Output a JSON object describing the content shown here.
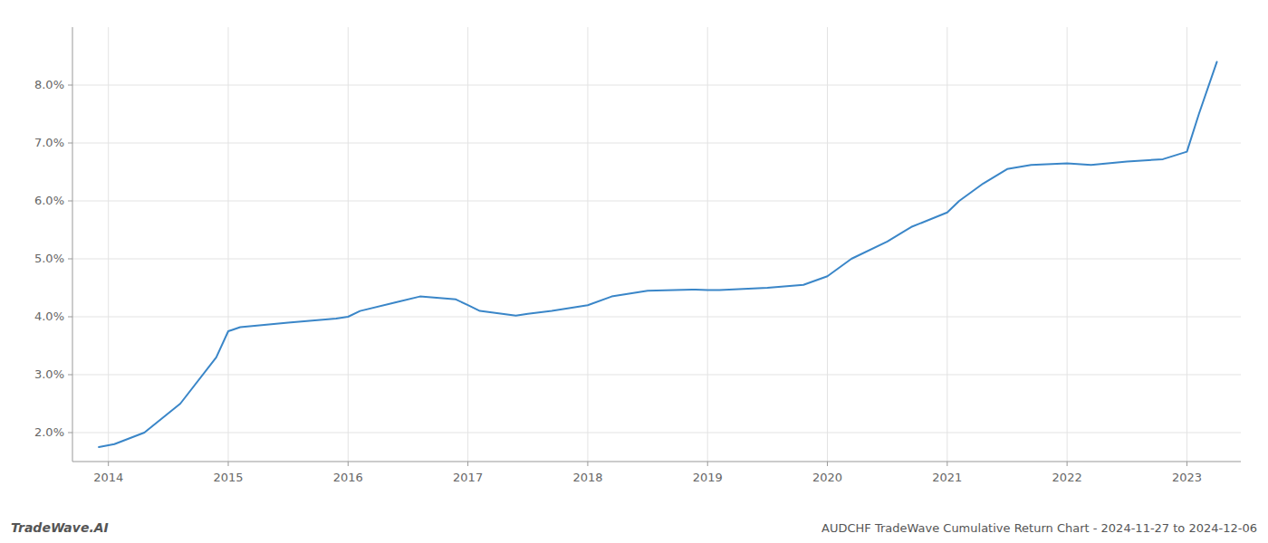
{
  "chart_data": {
    "type": "line",
    "title": "AUDCHF TradeWave Cumulative Return Chart - 2024-11-27 to 2024-12-06",
    "annotations": [
      "TradeWave.AI"
    ],
    "x": [
      2013.92,
      2014.05,
      2014.3,
      2014.6,
      2014.9,
      2015.0,
      2015.1,
      2015.5,
      2015.9,
      2016.0,
      2016.1,
      2016.4,
      2016.6,
      2016.9,
      2017.0,
      2017.1,
      2017.4,
      2017.5,
      2017.7,
      2018.0,
      2018.2,
      2018.5,
      2018.9,
      2019.0,
      2019.1,
      2019.3,
      2019.5,
      2019.8,
      2020.0,
      2020.2,
      2020.5,
      2020.7,
      2021.0,
      2021.1,
      2021.3,
      2021.5,
      2021.7,
      2022.0,
      2022.2,
      2022.5,
      2022.8,
      2023.0,
      2023.1,
      2023.25
    ],
    "values": [
      1.75,
      1.8,
      2.0,
      2.5,
      3.3,
      3.75,
      3.82,
      3.9,
      3.97,
      4.0,
      4.1,
      4.25,
      4.35,
      4.3,
      4.2,
      4.1,
      4.02,
      4.05,
      4.1,
      4.2,
      4.35,
      4.45,
      4.47,
      4.46,
      4.46,
      4.48,
      4.5,
      4.55,
      4.7,
      5.0,
      5.3,
      5.55,
      5.8,
      6.0,
      6.3,
      6.55,
      6.62,
      6.65,
      6.62,
      6.68,
      6.72,
      6.85,
      7.5,
      8.4
    ],
    "color": "#3a86c8",
    "xlim": [
      2013.7,
      2023.45
    ],
    "ylim": [
      1.5,
      9.0
    ],
    "xticks": [
      2014,
      2015,
      2016,
      2017,
      2018,
      2019,
      2020,
      2021,
      2022,
      2023
    ],
    "yticks": [
      {
        "value": 2.0,
        "label": "2.0%"
      },
      {
        "value": 3.0,
        "label": "3.0%"
      },
      {
        "value": 4.0,
        "label": "4.0%"
      },
      {
        "value": 5.0,
        "label": "5.0%"
      },
      {
        "value": 6.0,
        "label": "6.0%"
      },
      {
        "value": 7.0,
        "label": "7.0%"
      },
      {
        "value": 8.0,
        "label": "8.0%"
      }
    ],
    "grid": true
  }
}
